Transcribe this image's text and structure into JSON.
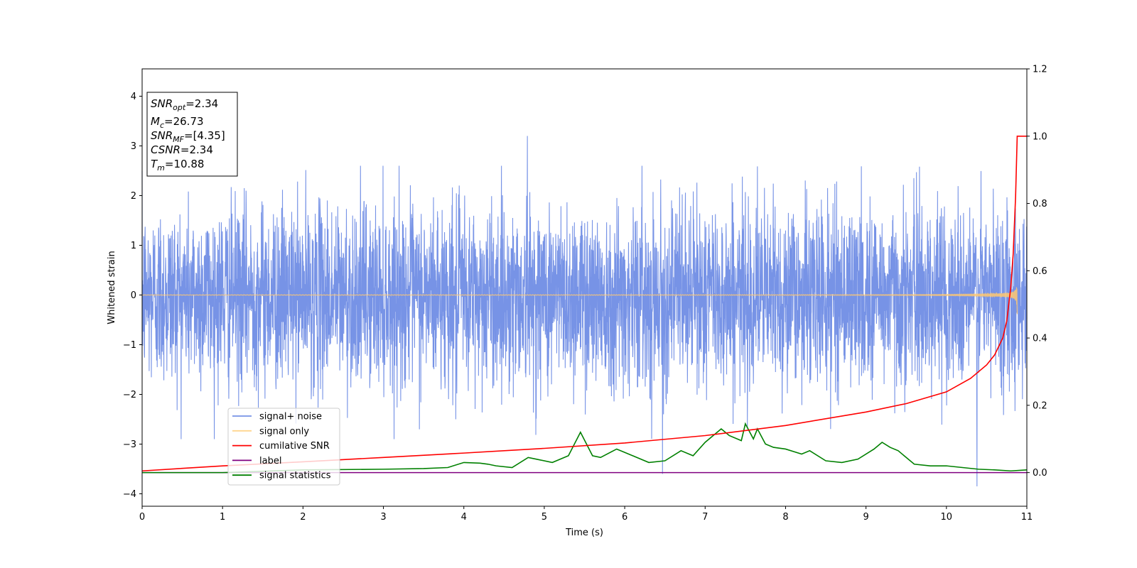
{
  "chart_data": {
    "type": "line",
    "xlabel": "Time (s)",
    "ylabel": "Whitened strain",
    "xlim": [
      0,
      11
    ],
    "ylim": [
      -4.25,
      4.55
    ],
    "y2lim": [
      -0.1,
      1.2
    ],
    "x_ticks": [
      "0",
      "1",
      "2",
      "3",
      "4",
      "5",
      "6",
      "7",
      "8",
      "9",
      "10",
      "11"
    ],
    "y_ticks": [
      "−4",
      "−3",
      "−2",
      "−1",
      "0",
      "1",
      "2",
      "3",
      "4"
    ],
    "y2_ticks": [
      "0.0",
      "0.2",
      "0.4",
      "0.6",
      "0.8",
      "1.0",
      "1.2"
    ],
    "grid": false,
    "legend_position": "lower-left",
    "series": [
      {
        "name": "signal+ noise",
        "color": "#7793e6",
        "axis": "left",
        "kind": "noise",
        "amplitude_sd": 0.9,
        "x_range": [
          0,
          11
        ],
        "peaks": [
          [
            4.79,
            3.2
          ],
          [
            6.47,
            -3.6
          ],
          [
            10.38,
            -3.85
          ],
          [
            3.9,
            -2.5
          ]
        ]
      },
      {
        "name": "signal only",
        "color": "#ffc870",
        "axis": "left",
        "kind": "chirp",
        "x_range": [
          0,
          10.88
        ],
        "peak_amplitude": 0.4,
        "merger_time": 10.88
      },
      {
        "name": "cumilative SNR",
        "color": "#ff0000",
        "axis": "right",
        "x": [
          0,
          1,
          2,
          3,
          4,
          5,
          6,
          7,
          8,
          9,
          9.5,
          10,
          10.3,
          10.5,
          10.6,
          10.7,
          10.75,
          10.8,
          10.83,
          10.86,
          10.88,
          11
        ],
        "y": [
          0.005,
          0.02,
          0.032,
          0.045,
          0.058,
          0.072,
          0.088,
          0.11,
          0.14,
          0.18,
          0.205,
          0.24,
          0.28,
          0.32,
          0.35,
          0.4,
          0.45,
          0.55,
          0.65,
          0.82,
          1.0,
          1.0
        ]
      },
      {
        "name": "label",
        "color": "#800080",
        "axis": "right",
        "x": [
          0,
          11
        ],
        "y": [
          0.0,
          0.0
        ]
      },
      {
        "name": "signal statistics",
        "color": "#008000",
        "axis": "right",
        "x": [
          0,
          1,
          2,
          3,
          3.5,
          3.8,
          4,
          4.2,
          4.3,
          4.4,
          4.6,
          4.8,
          4.9,
          5.1,
          5.3,
          5.45,
          5.6,
          5.7,
          5.9,
          6.1,
          6.3,
          6.5,
          6.7,
          6.85,
          7,
          7.1,
          7.2,
          7.3,
          7.45,
          7.5,
          7.6,
          7.65,
          7.75,
          7.85,
          8,
          8.2,
          8.3,
          8.5,
          8.7,
          8.9,
          9.1,
          9.2,
          9.3,
          9.4,
          9.6,
          9.8,
          10,
          10.2,
          10.4,
          10.6,
          10.8,
          11
        ],
        "y": [
          0.0,
          0.0,
          0.008,
          0.01,
          0.012,
          0.015,
          0.03,
          0.028,
          0.025,
          0.02,
          0.015,
          0.045,
          0.04,
          0.03,
          0.05,
          0.12,
          0.05,
          0.045,
          0.07,
          0.05,
          0.03,
          0.035,
          0.065,
          0.05,
          0.09,
          0.11,
          0.13,
          0.11,
          0.095,
          0.145,
          0.1,
          0.13,
          0.085,
          0.075,
          0.07,
          0.055,
          0.065,
          0.035,
          0.03,
          0.04,
          0.07,
          0.09,
          0.075,
          0.065,
          0.025,
          0.02,
          0.02,
          0.015,
          0.01,
          0.008,
          0.005,
          0.008
        ]
      }
    ],
    "annotation": {
      "lines": [
        {
          "it": "SNR",
          "sub": "opt",
          "rest": "=2.34"
        },
        {
          "it": "M",
          "sub": "c",
          "rest": "=26.73"
        },
        {
          "it": "SNR",
          "sub": "MF",
          "rest": "=[4.35]"
        },
        {
          "it": "CSNR",
          "sub": "",
          "rest": "=2.34"
        },
        {
          "it": "T",
          "sub": "m",
          "rest": "=10.88"
        }
      ]
    }
  }
}
